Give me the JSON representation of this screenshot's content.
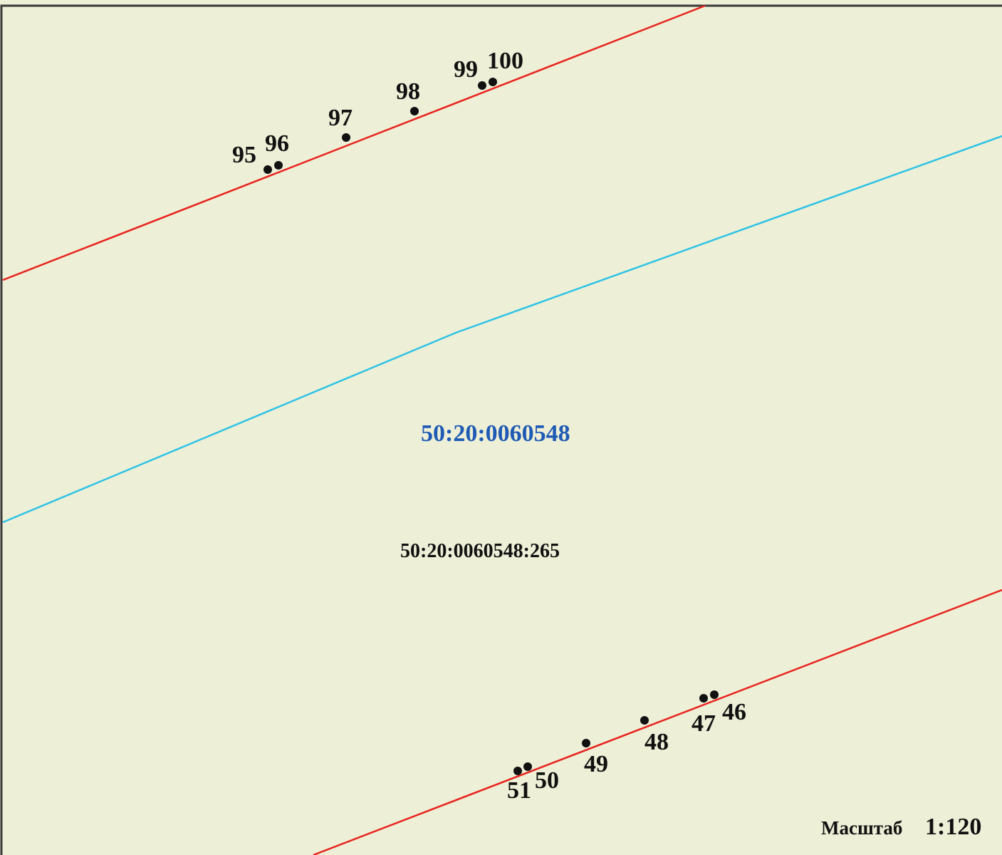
{
  "map": {
    "background_color": "#EEEFD7",
    "border_color": "#3a3a3a",
    "boundary_line_color": "#E8231E",
    "quarter_line_color": "#2EC3E6",
    "point_color": "#111111",
    "quarter_label_color": "#1F5BB5"
  },
  "labels": {
    "quarter_number": "50:20:0060548",
    "parcel_number": "50:20:0060548:265"
  },
  "scale": {
    "word": "Масштаб",
    "value": "1:120"
  },
  "upper_boundary_points": [
    {
      "label": "95"
    },
    {
      "label": "96"
    },
    {
      "label": "97"
    },
    {
      "label": "98"
    },
    {
      "label": "99"
    },
    {
      "label": "100"
    }
  ],
  "lower_boundary_points": [
    {
      "label": "46"
    },
    {
      "label": "47"
    },
    {
      "label": "48"
    },
    {
      "label": "49"
    },
    {
      "label": "50"
    },
    {
      "label": "51"
    }
  ]
}
